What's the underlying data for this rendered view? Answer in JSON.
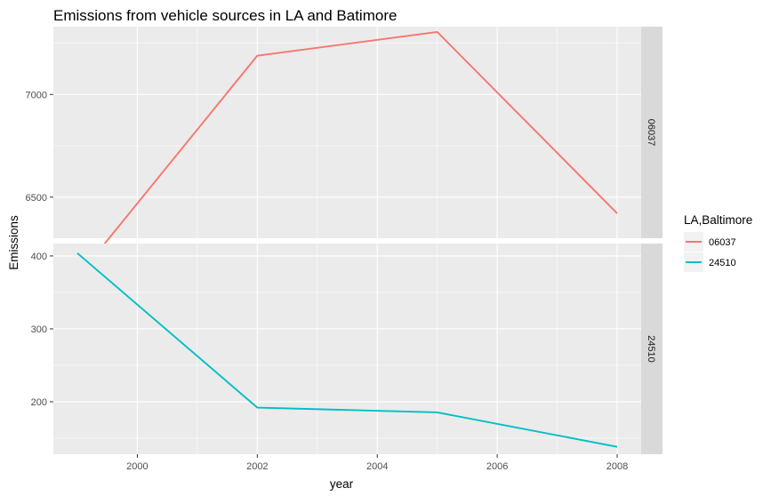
{
  "chart_data": {
    "type": "line",
    "title": "Emissions from vehicle sources in LA and Batimore",
    "xlabel": "year",
    "ylabel": "Emissions",
    "legend": {
      "title": "LA,Baltimore",
      "placement": "right"
    },
    "x": [
      1999,
      2002,
      2005,
      2008
    ],
    "xlim": [
      1998.6,
      2008.4
    ],
    "xticks": [
      2000,
      2002,
      2004,
      2006,
      2008
    ],
    "grid": true,
    "facets": [
      {
        "strip": "06037",
        "ylim": [
          6300,
          7330
        ],
        "yticks": [
          6500,
          7000
        ],
        "series": [
          {
            "name": "06037",
            "color": "#F8766D",
            "values": [
              6109.7,
              7188.7,
              7304.1,
              6421.0
            ]
          }
        ]
      },
      {
        "strip": "24510",
        "ylim": [
          128,
          417
        ],
        "yticks": [
          200,
          300,
          400
        ],
        "series": [
          {
            "name": "24510",
            "color": "#00BFC4",
            "values": [
              403.8,
              192.0,
              185.4,
              138.2
            ]
          }
        ]
      }
    ]
  }
}
